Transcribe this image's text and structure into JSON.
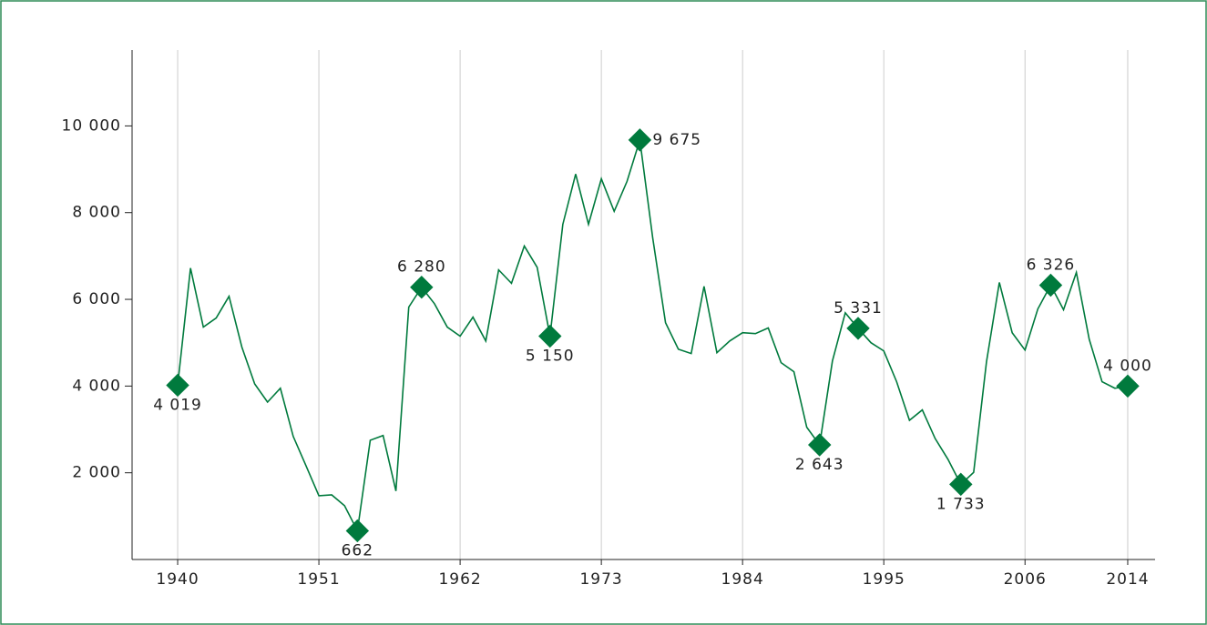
{
  "chart_data": {
    "type": "line",
    "x": [
      1940,
      1941,
      1942,
      1943,
      1944,
      1945,
      1946,
      1947,
      1948,
      1949,
      1950,
      1951,
      1952,
      1953,
      1954,
      1955,
      1956,
      1957,
      1958,
      1959,
      1960,
      1961,
      1962,
      1963,
      1964,
      1965,
      1966,
      1967,
      1968,
      1969,
      1970,
      1971,
      1972,
      1973,
      1974,
      1975,
      1976,
      1977,
      1978,
      1979,
      1980,
      1981,
      1982,
      1983,
      1984,
      1985,
      1986,
      1987,
      1988,
      1989,
      1990,
      1991,
      1992,
      1993,
      1994,
      1995,
      1996,
      1997,
      1998,
      1999,
      2000,
      2001,
      2002,
      2003,
      2004,
      2005,
      2006,
      2007,
      2008,
      2009,
      2010,
      2011,
      2012,
      2013,
      2014
    ],
    "values": [
      4019,
      6720,
      5360,
      5570,
      6070,
      4900,
      4050,
      3630,
      3950,
      2840,
      2160,
      1470,
      1490,
      1240,
      662,
      2750,
      2860,
      1580,
      5820,
      6280,
      5900,
      5360,
      5150,
      5590,
      5040,
      6680,
      6370,
      7230,
      6740,
      5150,
      7730,
      8890,
      7730,
      8780,
      8030,
      8720,
      9675,
      7420,
      5460,
      4850,
      4750,
      6300,
      4770,
      5040,
      5230,
      5210,
      5340,
      4540,
      4330,
      3050,
      2643,
      4580,
      5690,
      5331,
      5000,
      4810,
      4100,
      3210,
      3450,
      2790,
      2310,
      1733,
      2010,
      4560,
      6390,
      5230,
      4830,
      5780,
      6326,
      5760,
      6620,
      5080,
      4100,
      3950,
      4000
    ],
    "value_labels": [
      "4 019",
      null,
      null,
      null,
      null,
      null,
      null,
      null,
      null,
      null,
      null,
      null,
      null,
      null,
      "662",
      null,
      null,
      null,
      null,
      "6 280",
      null,
      null,
      null,
      null,
      null,
      null,
      null,
      null,
      null,
      "5 150",
      null,
      null,
      null,
      null,
      null,
      null,
      "9 675",
      null,
      null,
      null,
      null,
      null,
      null,
      null,
      null,
      null,
      null,
      null,
      null,
      null,
      "2 643",
      null,
      null,
      "5 331",
      null,
      null,
      null,
      null,
      null,
      null,
      null,
      "1 733",
      null,
      null,
      null,
      null,
      null,
      null,
      "6 326",
      null,
      null,
      null,
      null,
      null,
      "4 000"
    ],
    "color": "#007a3d",
    "xlim": [
      1936.45,
      2016.13
    ],
    "xticks": [
      1940,
      1951,
      1962,
      1973,
      1984,
      1995,
      2006,
      2014
    ],
    "ylim": [
      0,
      11750
    ],
    "yticks": [
      {
        "value": 2000,
        "label": "2 000"
      },
      {
        "value": 4000,
        "label": "4 000"
      },
      {
        "value": 6000,
        "label": "6 000"
      },
      {
        "value": 8000,
        "label": "8 000"
      },
      {
        "value": 10000,
        "label": "10 000"
      }
    ],
    "grid": true
  }
}
